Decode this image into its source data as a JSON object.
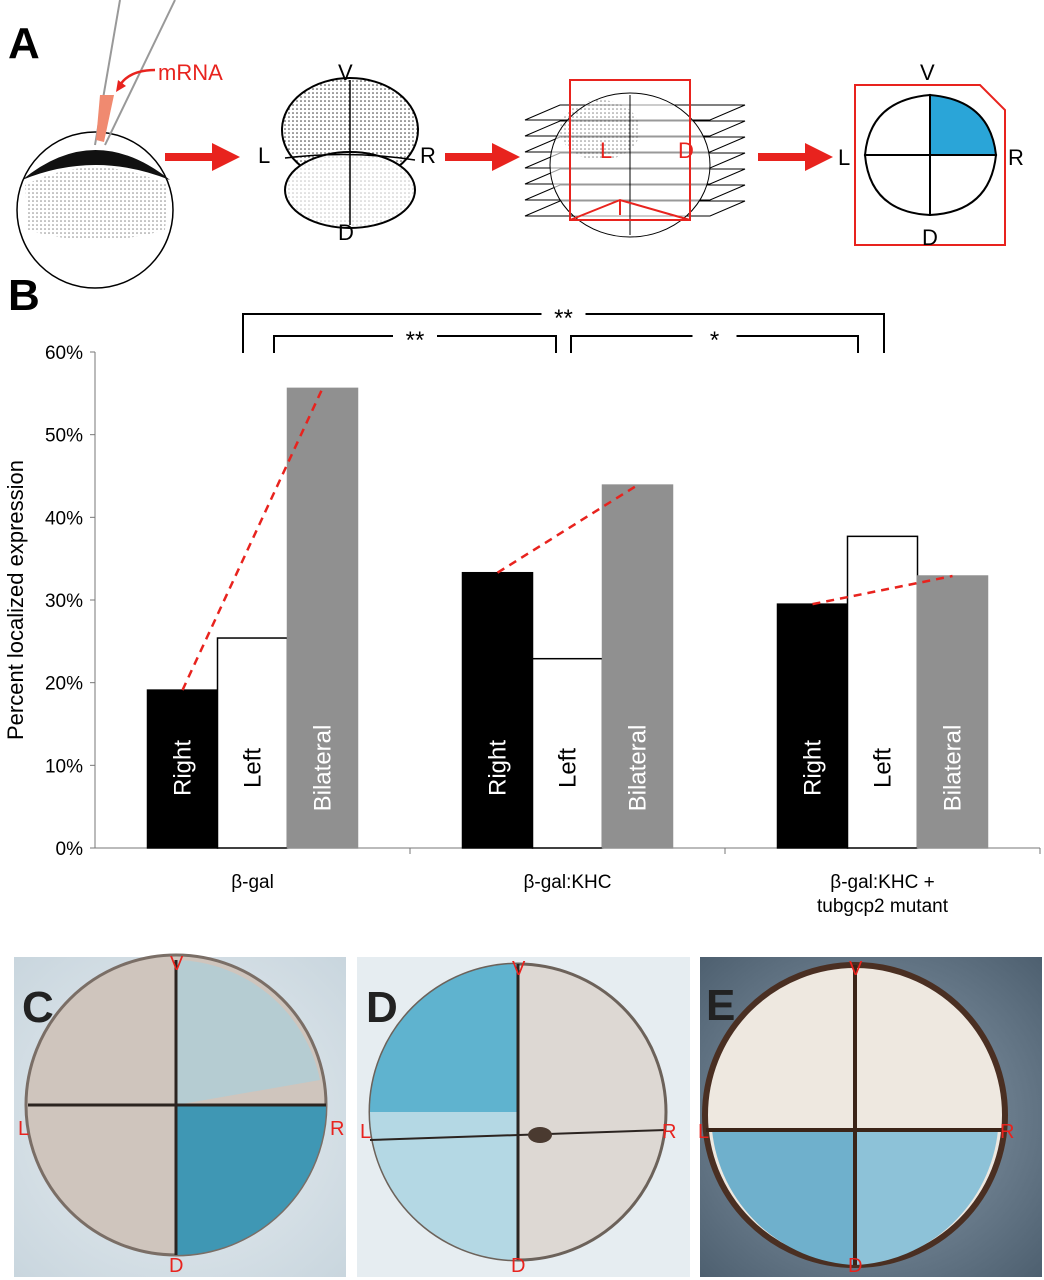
{
  "panels": {
    "A": {
      "letter": "A",
      "mrna_label": "mRNA",
      "axes": {
        "v": "V",
        "d": "D",
        "l": "L",
        "r": "R"
      }
    },
    "B": {
      "letter": "B"
    },
    "C": {
      "letter": "C"
    },
    "D": {
      "letter": "D"
    },
    "E": {
      "letter": "E"
    }
  },
  "chart_data": {
    "type": "bar",
    "title": "",
    "xlabel": "",
    "ylabel": "Percent localized expression",
    "ylim": [
      0,
      60
    ],
    "yticks": [
      "0%",
      "10%",
      "20%",
      "30%",
      "40%",
      "50%",
      "60%"
    ],
    "categories": [
      "β-gal",
      "β-gal:KHC",
      "β-gal:KHC + tubgcp2 mutant"
    ],
    "category_lines": [
      [
        "β-gal"
      ],
      [
        "β-gal:KHC"
      ],
      [
        "β-gal:KHC +",
        "tubgcp2 mutant"
      ]
    ],
    "series": [
      {
        "name": "Right",
        "color": "#000000",
        "text_color": "#ffffff",
        "values": [
          19.1,
          33.3,
          29.5
        ]
      },
      {
        "name": "Left",
        "color": "#ffffff",
        "text_color": "#000000",
        "values": [
          25.4,
          22.9,
          37.7
        ]
      },
      {
        "name": "Bilateral",
        "color": "#909090",
        "text_color": "#ffffff",
        "values": [
          55.6,
          43.9,
          32.9
        ]
      }
    ],
    "trend_lines": "red dashed from Right to Bilateral in each group",
    "significance": [
      {
        "from": "β-gal",
        "to": "β-gal:KHC + tubgcp2 mutant",
        "label": "**"
      },
      {
        "from": "β-gal",
        "to": "β-gal:KHC",
        "label": "**"
      },
      {
        "from": "β-gal:KHC",
        "to": "β-gal:KHC + tubgcp2 mutant",
        "label": "*"
      }
    ],
    "grid": false
  },
  "colors": {
    "accent_red": "#e8231e",
    "stain_blue": "#2aa5d8"
  }
}
